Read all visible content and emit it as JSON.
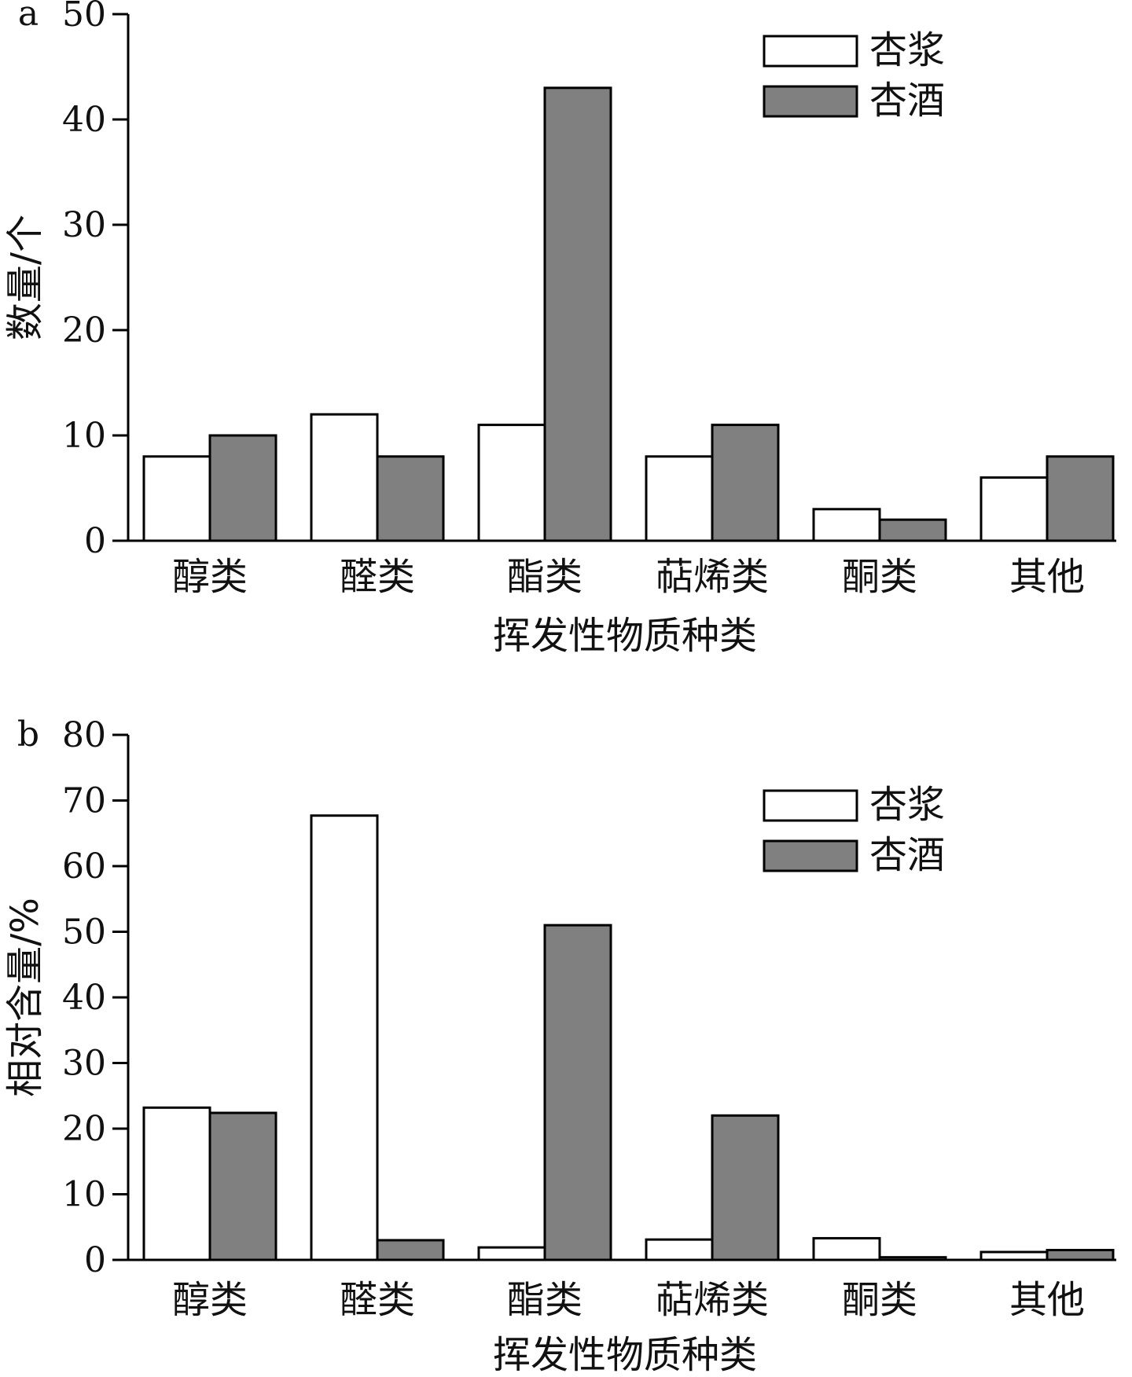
{
  "colors": {
    "series_1": "#ffffff",
    "series_2": "#808080",
    "axis": "#000000"
  },
  "chart_data": [
    {
      "panel": "a",
      "type": "bar",
      "categories": [
        "醇类",
        "醛类",
        "酯类",
        "萜烯类",
        "酮类",
        "其他"
      ],
      "series": [
        {
          "name": "杏浆",
          "values": [
            8,
            12,
            11,
            8,
            3,
            6
          ]
        },
        {
          "name": "杏酒",
          "values": [
            10,
            8,
            43,
            11,
            2,
            8
          ]
        }
      ],
      "xlabel": "挥发性物质种类",
      "ylabel": "数量/个",
      "ylim": [
        0,
        50
      ],
      "yticks": [
        "0",
        "10",
        "20",
        "30",
        "40",
        "50"
      ],
      "legend": "top-right",
      "grid": false
    },
    {
      "panel": "b",
      "type": "bar",
      "categories": [
        "醇类",
        "醛类",
        "酯类",
        "萜烯类",
        "酮类",
        "其他"
      ],
      "series": [
        {
          "name": "杏浆",
          "values": [
            23.2,
            67.7,
            1.9,
            3.1,
            3.3,
            1.2
          ]
        },
        {
          "name": "杏酒",
          "values": [
            22.4,
            3.0,
            51.0,
            22.0,
            0.4,
            1.5
          ]
        }
      ],
      "xlabel": "挥发性物质种类",
      "ylabel": "相对含量/%",
      "ylim": [
        0,
        80
      ],
      "yticks": [
        "0",
        "10",
        "20",
        "30",
        "40",
        "50",
        "60",
        "70",
        "80"
      ],
      "legend": "top-right",
      "grid": false
    }
  ]
}
